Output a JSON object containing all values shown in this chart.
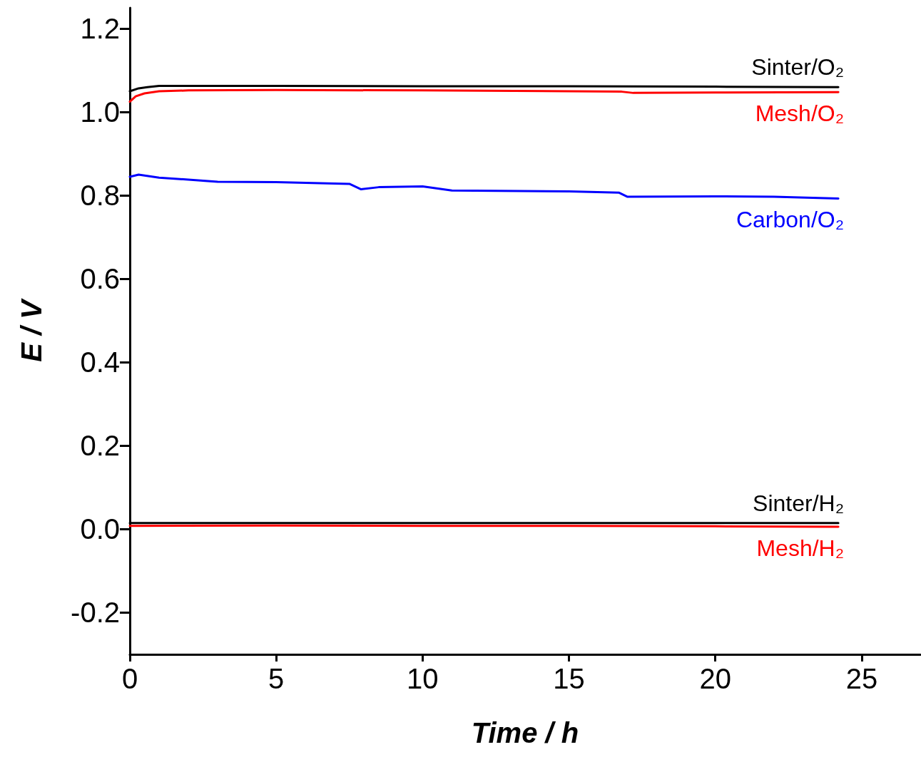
{
  "chart_data": {
    "type": "line",
    "xlabel": "Time / h",
    "ylabel": "E / V",
    "xlim": [
      0,
      27
    ],
    "ylim": [
      -0.3,
      1.25
    ],
    "xticks": [
      0,
      5,
      10,
      15,
      20,
      25
    ],
    "yticks": [
      {
        "value": -0.2,
        "label": "-0.2"
      },
      {
        "value": 0,
        "label": "0.0"
      },
      {
        "value": 0.2,
        "label": "0.2"
      },
      {
        "value": 0.4,
        "label": "0.4"
      },
      {
        "value": 0.6,
        "label": "0.6"
      },
      {
        "value": 0.8,
        "label": "0.8"
      },
      {
        "value": 1.0,
        "label": "1.0"
      },
      {
        "value": 1.2,
        "label": "1.2"
      }
    ],
    "grid": false,
    "legend": false,
    "marker": "none",
    "line_style": "solid",
    "series": [
      {
        "name": "Sinter/O₂",
        "color": "#000000",
        "x": [
          0,
          0.3,
          0.6,
          1,
          2,
          5,
          10,
          15,
          20,
          24.2
        ],
        "values": [
          1.05,
          1.057,
          1.06,
          1.063,
          1.063,
          1.063,
          1.062,
          1.062,
          1.061,
          1.06
        ]
      },
      {
        "name": "Mesh/O₂",
        "color": "#ff0000",
        "x": [
          0,
          0.2,
          0.5,
          1,
          2,
          5,
          10,
          15,
          16.8,
          17.2,
          20,
          24.2
        ],
        "values": [
          1.025,
          1.038,
          1.045,
          1.05,
          1.052,
          1.053,
          1.052,
          1.05,
          1.049,
          1.046,
          1.047,
          1.048
        ]
      },
      {
        "name": "Carbon/O₂",
        "color": "#0000ff",
        "x": [
          0,
          0.3,
          1,
          2,
          3,
          5,
          7.5,
          7.9,
          8.5,
          10,
          11,
          15,
          16.7,
          17,
          20,
          22,
          24.2
        ],
        "values": [
          0.845,
          0.85,
          0.843,
          0.838,
          0.833,
          0.832,
          0.828,
          0.815,
          0.82,
          0.822,
          0.812,
          0.81,
          0.807,
          0.797,
          0.798,
          0.797,
          0.793
        ]
      },
      {
        "name": "Sinter/H₂",
        "color": "#000000",
        "x": [
          0,
          5,
          10,
          15,
          20,
          24.2
        ],
        "values": [
          0.015,
          0.015,
          0.015,
          0.015,
          0.015,
          0.015
        ]
      },
      {
        "name": "Mesh/H₂",
        "color": "#ff0000",
        "x": [
          0,
          5,
          10,
          15,
          20,
          24.2
        ],
        "values": [
          0.008,
          0.009,
          0.008,
          0.008,
          0.007,
          0.006
        ]
      }
    ]
  }
}
